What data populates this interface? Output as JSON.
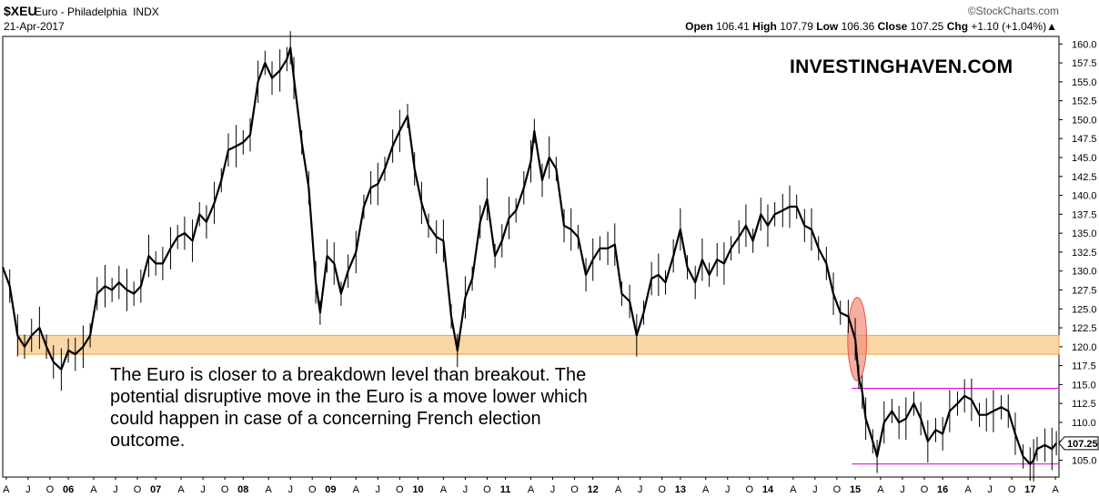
{
  "header": {
    "symbol": "$XEU",
    "name": "Euro - Philadelphia",
    "exchange": "INDX",
    "date": "21-Apr-2017",
    "brand": "©StockCharts.com",
    "open_label": "Open",
    "open": "106.41",
    "high_label": "High",
    "high": "107.79",
    "low_label": "Low",
    "low": "106.36",
    "close_label": "Close",
    "close": "107.25",
    "chg_label": "Chg",
    "chg": "+1.10 (+1.04%)",
    "chg_arrow": "▲"
  },
  "watermark": "INVESTINGHAVEN.COM",
  "annotation": "The Euro is closer to a breakdown level than breakout. The potential disruptive move in the Euro is a move lower which could happen in case of a concerning French election outcome.",
  "chart_data": {
    "type": "line",
    "title": "$XEU Euro - Philadelphia INDX",
    "ylim": [
      103.5,
      161.0
    ],
    "xlim": [
      2005.25,
      2017.33
    ],
    "y_ticks": [
      "160.0",
      "157.5",
      "155.0",
      "152.5",
      "150.0",
      "147.5",
      "145.0",
      "142.5",
      "140.0",
      "137.5",
      "135.0",
      "132.5",
      "130.0",
      "127.5",
      "125.0",
      "122.5",
      "120.0",
      "117.5",
      "115.0",
      "112.5",
      "110.0",
      "107.5",
      "105.0"
    ],
    "last_value_label": "107.25",
    "last_value": 107.25,
    "x_tick_labels": [
      {
        "t": 2005.29,
        "label": "A"
      },
      {
        "t": 2005.54,
        "label": "J"
      },
      {
        "t": 2005.79,
        "label": "O"
      },
      {
        "t": 2006.0,
        "label": "06"
      },
      {
        "t": 2006.29,
        "label": "A"
      },
      {
        "t": 2006.54,
        "label": "J"
      },
      {
        "t": 2006.79,
        "label": "O"
      },
      {
        "t": 2007.0,
        "label": "07"
      },
      {
        "t": 2007.29,
        "label": "A"
      },
      {
        "t": 2007.54,
        "label": "J"
      },
      {
        "t": 2007.79,
        "label": "O"
      },
      {
        "t": 2008.0,
        "label": "08"
      },
      {
        "t": 2008.29,
        "label": "A"
      },
      {
        "t": 2008.54,
        "label": "J"
      },
      {
        "t": 2008.79,
        "label": "O"
      },
      {
        "t": 2009.0,
        "label": "09"
      },
      {
        "t": 2009.29,
        "label": "A"
      },
      {
        "t": 2009.54,
        "label": "J"
      },
      {
        "t": 2009.79,
        "label": "O"
      },
      {
        "t": 2010.0,
        "label": "10"
      },
      {
        "t": 2010.29,
        "label": "A"
      },
      {
        "t": 2010.54,
        "label": "J"
      },
      {
        "t": 2010.79,
        "label": "O"
      },
      {
        "t": 2011.0,
        "label": "11"
      },
      {
        "t": 2011.29,
        "label": "A"
      },
      {
        "t": 2011.54,
        "label": "J"
      },
      {
        "t": 2011.79,
        "label": "O"
      },
      {
        "t": 2012.0,
        "label": "12"
      },
      {
        "t": 2012.29,
        "label": "A"
      },
      {
        "t": 2012.54,
        "label": "J"
      },
      {
        "t": 2012.79,
        "label": "O"
      },
      {
        "t": 2013.0,
        "label": "13"
      },
      {
        "t": 2013.29,
        "label": "A"
      },
      {
        "t": 2013.54,
        "label": "J"
      },
      {
        "t": 2013.79,
        "label": "O"
      },
      {
        "t": 2014.0,
        "label": "14"
      },
      {
        "t": 2014.29,
        "label": "A"
      },
      {
        "t": 2014.54,
        "label": "J"
      },
      {
        "t": 2014.79,
        "label": "O"
      },
      {
        "t": 2015.0,
        "label": "15"
      },
      {
        "t": 2015.29,
        "label": "A"
      },
      {
        "t": 2015.54,
        "label": "J"
      },
      {
        "t": 2015.79,
        "label": "O"
      },
      {
        "t": 2016.0,
        "label": "16"
      },
      {
        "t": 2016.29,
        "label": "A"
      },
      {
        "t": 2016.54,
        "label": "J"
      },
      {
        "t": 2016.79,
        "label": "O"
      },
      {
        "t": 2017.0,
        "label": "17"
      },
      {
        "t": 2017.29,
        "label": "A"
      }
    ],
    "series": [
      {
        "values": [
          [
            2005.25,
            130.5
          ],
          [
            2005.33,
            128.0
          ],
          [
            2005.42,
            121.5
          ],
          [
            2005.5,
            120.0
          ],
          [
            2005.58,
            121.5
          ],
          [
            2005.67,
            122.5
          ],
          [
            2005.75,
            120.0
          ],
          [
            2005.83,
            118.0
          ],
          [
            2005.92,
            117.0
          ],
          [
            2006.0,
            119.5
          ],
          [
            2006.08,
            119.0
          ],
          [
            2006.17,
            120.0
          ],
          [
            2006.25,
            121.5
          ],
          [
            2006.33,
            127.0
          ],
          [
            2006.42,
            128.0
          ],
          [
            2006.5,
            127.5
          ],
          [
            2006.58,
            128.5
          ],
          [
            2006.67,
            127.5
          ],
          [
            2006.75,
            127.0
          ],
          [
            2006.83,
            128.0
          ],
          [
            2006.92,
            132.0
          ],
          [
            2007.0,
            131.0
          ],
          [
            2007.08,
            131.0
          ],
          [
            2007.17,
            133.0
          ],
          [
            2007.25,
            134.5
          ],
          [
            2007.33,
            135.0
          ],
          [
            2007.42,
            134.0
          ],
          [
            2007.5,
            137.5
          ],
          [
            2007.58,
            136.5
          ],
          [
            2007.67,
            139.0
          ],
          [
            2007.75,
            142.0
          ],
          [
            2007.83,
            146.0
          ],
          [
            2007.92,
            146.5
          ],
          [
            2008.0,
            147.0
          ],
          [
            2008.08,
            148.0
          ],
          [
            2008.17,
            155.0
          ],
          [
            2008.25,
            157.5
          ],
          [
            2008.33,
            155.5
          ],
          [
            2008.42,
            156.5
          ],
          [
            2008.5,
            158.0
          ],
          [
            2008.54,
            159.5
          ],
          [
            2008.58,
            155.5
          ],
          [
            2008.67,
            147.0
          ],
          [
            2008.75,
            141.0
          ],
          [
            2008.83,
            128.5
          ],
          [
            2008.88,
            124.5
          ],
          [
            2008.96,
            132.0
          ],
          [
            2009.04,
            131.0
          ],
          [
            2009.12,
            127.0
          ],
          [
            2009.2,
            130.0
          ],
          [
            2009.29,
            132.5
          ],
          [
            2009.38,
            138.5
          ],
          [
            2009.46,
            141.0
          ],
          [
            2009.54,
            141.5
          ],
          [
            2009.62,
            143.5
          ],
          [
            2009.71,
            146.5
          ],
          [
            2009.79,
            148.5
          ],
          [
            2009.88,
            150.5
          ],
          [
            2009.96,
            143.5
          ],
          [
            2010.04,
            139.0
          ],
          [
            2010.12,
            136.0
          ],
          [
            2010.21,
            134.5
          ],
          [
            2010.29,
            134.0
          ],
          [
            2010.38,
            124.0
          ],
          [
            2010.45,
            119.5
          ],
          [
            2010.54,
            126.5
          ],
          [
            2010.62,
            129.0
          ],
          [
            2010.71,
            136.5
          ],
          [
            2010.79,
            139.5
          ],
          [
            2010.88,
            132.0
          ],
          [
            2010.96,
            134.0
          ],
          [
            2011.04,
            137.0
          ],
          [
            2011.12,
            138.0
          ],
          [
            2011.21,
            141.0
          ],
          [
            2011.29,
            144.5
          ],
          [
            2011.33,
            148.5
          ],
          [
            2011.42,
            142.0
          ],
          [
            2011.5,
            145.0
          ],
          [
            2011.58,
            143.5
          ],
          [
            2011.67,
            136.0
          ],
          [
            2011.75,
            135.5
          ],
          [
            2011.83,
            134.5
          ],
          [
            2011.92,
            129.5
          ],
          [
            2012.0,
            131.5
          ],
          [
            2012.08,
            133.0
          ],
          [
            2012.17,
            133.0
          ],
          [
            2012.25,
            133.5
          ],
          [
            2012.33,
            127.0
          ],
          [
            2012.42,
            126.0
          ],
          [
            2012.5,
            121.5
          ],
          [
            2012.58,
            124.5
          ],
          [
            2012.67,
            129.0
          ],
          [
            2012.75,
            129.5
          ],
          [
            2012.83,
            128.5
          ],
          [
            2012.92,
            132.0
          ],
          [
            2013.0,
            135.5
          ],
          [
            2013.08,
            130.5
          ],
          [
            2013.17,
            128.5
          ],
          [
            2013.25,
            131.5
          ],
          [
            2013.33,
            129.5
          ],
          [
            2013.42,
            131.5
          ],
          [
            2013.5,
            131.0
          ],
          [
            2013.58,
            133.0
          ],
          [
            2013.67,
            134.5
          ],
          [
            2013.75,
            136.0
          ],
          [
            2013.83,
            134.0
          ],
          [
            2013.92,
            137.5
          ],
          [
            2014.0,
            136.0
          ],
          [
            2014.08,
            137.5
          ],
          [
            2014.17,
            138.0
          ],
          [
            2014.25,
            138.5
          ],
          [
            2014.33,
            138.5
          ],
          [
            2014.42,
            136.0
          ],
          [
            2014.5,
            135.5
          ],
          [
            2014.58,
            133.0
          ],
          [
            2014.67,
            131.0
          ],
          [
            2014.75,
            127.0
          ],
          [
            2014.83,
            124.5
          ],
          [
            2014.92,
            124.0
          ],
          [
            2015.0,
            121.0
          ],
          [
            2015.04,
            116.0
          ],
          [
            2015.08,
            114.0
          ],
          [
            2015.12,
            110.5
          ],
          [
            2015.2,
            107.5
          ],
          [
            2015.25,
            105.5
          ],
          [
            2015.33,
            110.0
          ],
          [
            2015.42,
            111.5
          ],
          [
            2015.5,
            110.0
          ],
          [
            2015.58,
            110.5
          ],
          [
            2015.67,
            112.5
          ],
          [
            2015.75,
            110.5
          ],
          [
            2015.83,
            107.5
          ],
          [
            2015.92,
            109.0
          ],
          [
            2016.0,
            108.5
          ],
          [
            2016.08,
            111.5
          ],
          [
            2016.17,
            112.5
          ],
          [
            2016.25,
            113.5
          ],
          [
            2016.33,
            113.0
          ],
          [
            2016.42,
            111.0
          ],
          [
            2016.5,
            111.0
          ],
          [
            2016.58,
            111.5
          ],
          [
            2016.67,
            112.0
          ],
          [
            2016.75,
            111.5
          ],
          [
            2016.83,
            108.5
          ],
          [
            2016.92,
            105.5
          ],
          [
            2017.0,
            104.5
          ],
          [
            2017.04,
            105.0
          ],
          [
            2017.08,
            106.5
          ],
          [
            2017.17,
            107.0
          ],
          [
            2017.25,
            106.5
          ],
          [
            2017.3,
            107.25
          ]
        ]
      }
    ],
    "shapes": [
      {
        "kind": "band",
        "y0": 119.0,
        "y1": 121.5,
        "t0": 2005.3,
        "t1": 2017.33,
        "color": "#f9c98a",
        "stroke": "#f0a23e"
      },
      {
        "kind": "ellipse",
        "t": 2014.96,
        "y": 121.0,
        "rt": 0.12,
        "ry": 5.5,
        "color": "#f08d7a",
        "stroke": "#e05545"
      },
      {
        "kind": "hline",
        "y": 114.5,
        "t0": 2014.96,
        "t1": 2017.33,
        "color": "#e000e0"
      },
      {
        "kind": "hline",
        "y": 104.5,
        "t0": 2014.96,
        "t1": 2017.33,
        "color": "#e000e0"
      }
    ]
  }
}
